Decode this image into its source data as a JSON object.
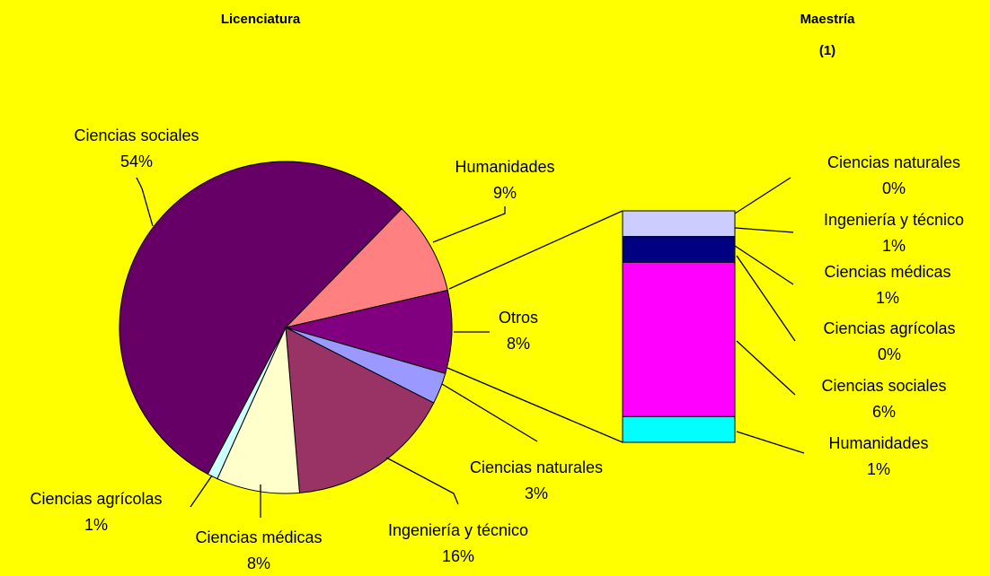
{
  "chart_data": [
    {
      "type": "pie",
      "title": "Licenciatura",
      "categories": [
        "Humanidades",
        "Otros",
        "Ciencias naturales",
        "Ingeniería y técnico",
        "Ciencias médicas",
        "Ciencias agrícolas",
        "Ciencias sociales"
      ],
      "values": [
        9,
        8,
        3,
        16,
        8,
        1,
        54
      ],
      "value_labels": [
        "9%",
        "8%",
        "3%",
        "16%",
        "8%",
        "1%",
        "54%"
      ],
      "colors": [
        "#ff8080",
        "#800080",
        "#9999ff",
        "#993366",
        "#ffffcc",
        "#ccffff",
        "#660066"
      ]
    },
    {
      "type": "stacked-bar",
      "title": "Maestría",
      "subtitle": "(1)",
      "categories": [
        "Ciencias naturales",
        "Ingeniería y técnico",
        "Ciencias médicas",
        "Ciencias agrícolas",
        "Ciencias sociales",
        "Humanidades"
      ],
      "values": [
        0,
        1,
        1,
        0,
        6,
        1
      ],
      "value_labels": [
        "0%",
        "1%",
        "1%",
        "0%",
        "6%",
        "1%"
      ],
      "colors": [
        "#6699cc",
        "#ccccff",
        "#000080",
        "#ccffff",
        "#ff00ff",
        "#00ffff"
      ]
    }
  ]
}
